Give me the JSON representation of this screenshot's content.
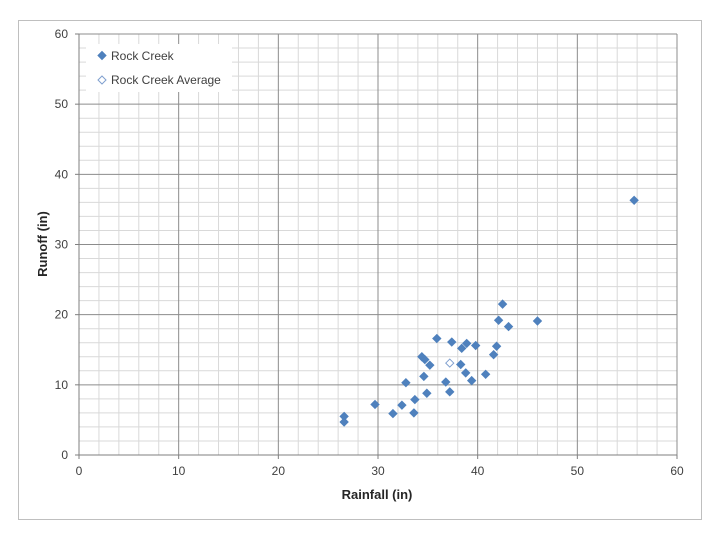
{
  "chart_data": {
    "type": "scatter",
    "xlabel": "Rainfall (in)",
    "ylabel": "Runoff (in)",
    "xlim": [
      0,
      60
    ],
    "ylim": [
      0,
      60
    ],
    "x_ticks": [
      0,
      10,
      20,
      30,
      40,
      50,
      60
    ],
    "y_ticks": [
      0,
      10,
      20,
      30,
      40,
      50,
      60
    ],
    "major_step": 10,
    "minor_step": 2,
    "grid": true,
    "legend_position": "top-left",
    "colors": {
      "series": "#4f81bd",
      "average_stroke": "#7f9fcf",
      "major_grid": "#8c8c8c",
      "minor_grid": "#d9d9d9",
      "axis": "#7f7f7f"
    },
    "series": [
      {
        "name": "Rock Creek",
        "marker": "filled-diamond",
        "points": [
          [
            26.6,
            5.5
          ],
          [
            26.6,
            4.7
          ],
          [
            29.7,
            7.2
          ],
          [
            31.5,
            5.9
          ],
          [
            32.4,
            7.1
          ],
          [
            32.8,
            10.3
          ],
          [
            33.6,
            6.0
          ],
          [
            33.7,
            7.9
          ],
          [
            34.4,
            14.0
          ],
          [
            34.6,
            11.2
          ],
          [
            34.7,
            13.6
          ],
          [
            34.9,
            8.8
          ],
          [
            35.2,
            12.8
          ],
          [
            35.9,
            16.6
          ],
          [
            36.8,
            10.4
          ],
          [
            37.2,
            9.0
          ],
          [
            37.4,
            16.1
          ],
          [
            38.3,
            12.9
          ],
          [
            38.4,
            15.2
          ],
          [
            38.8,
            11.7
          ],
          [
            38.9,
            15.9
          ],
          [
            39.4,
            10.6
          ],
          [
            39.8,
            15.6
          ],
          [
            40.8,
            11.5
          ],
          [
            41.6,
            14.3
          ],
          [
            41.9,
            15.5
          ],
          [
            42.1,
            19.2
          ],
          [
            42.5,
            21.5
          ],
          [
            43.1,
            18.3
          ],
          [
            46.0,
            19.1
          ],
          [
            55.7,
            36.3
          ]
        ]
      },
      {
        "name": "Rock Creek Average",
        "marker": "open-diamond",
        "points": [
          [
            37.2,
            13.1
          ]
        ]
      }
    ]
  }
}
